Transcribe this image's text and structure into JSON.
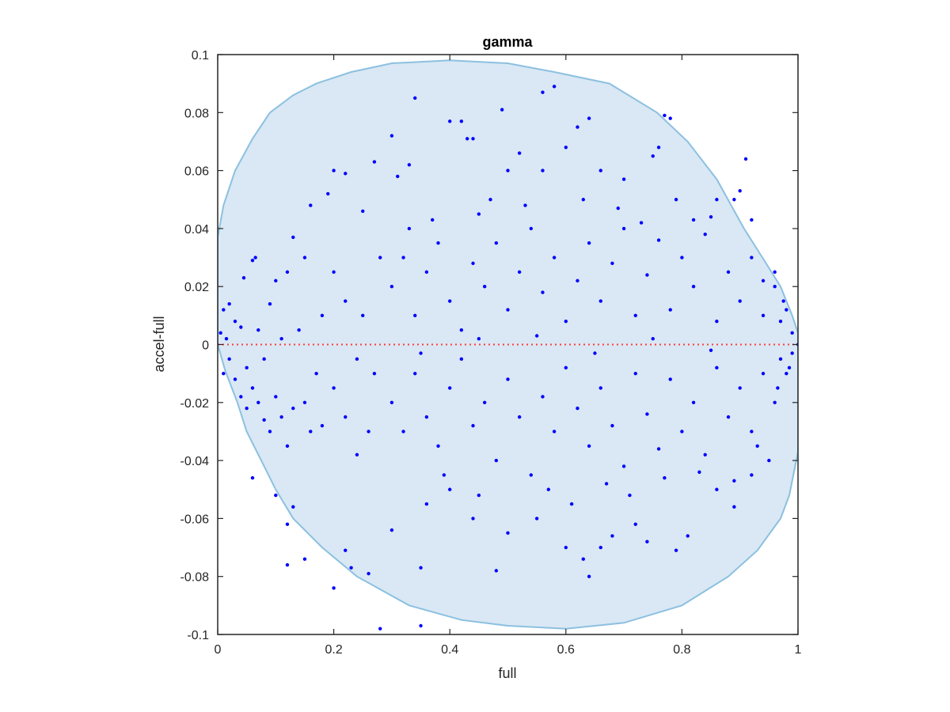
{
  "chart_data": {
    "type": "scatter",
    "title": "gamma",
    "xlabel": "full",
    "ylabel": "accel-full",
    "xlim": [
      0,
      1
    ],
    "ylim": [
      -0.1,
      0.1
    ],
    "xticks": [
      0,
      0.2,
      0.4,
      0.6,
      0.8,
      1
    ],
    "xtick_labels": [
      "0",
      "0.2",
      "0.4",
      "0.6",
      "0.8",
      "1"
    ],
    "yticks": [
      -0.1,
      -0.08,
      -0.06,
      -0.04,
      -0.02,
      0,
      0.02,
      0.04,
      0.06,
      0.08,
      0.1
    ],
    "ytick_labels": [
      "-0.1",
      "-0.08",
      "-0.06",
      "-0.04",
      "-0.02",
      "0",
      "0.02",
      "0.04",
      "0.06",
      "0.08",
      "0.1"
    ],
    "grid": false,
    "colors": {
      "points": "#0000ff",
      "region_fill": "#d9e8f4",
      "region_edge": "#8cc0e0",
      "reference_line": "#ff3b3b",
      "axes": "#262626"
    },
    "reference_line": {
      "y": 0,
      "style": "dotted"
    },
    "region": [
      [
        0,
        0.037
      ],
      [
        0.01,
        0.048
      ],
      [
        0.03,
        0.06
      ],
      [
        0.06,
        0.071
      ],
      [
        0.09,
        0.08
      ],
      [
        0.13,
        0.086
      ],
      [
        0.17,
        0.09
      ],
      [
        0.23,
        0.094
      ],
      [
        0.3,
        0.097
      ],
      [
        0.4,
        0.098
      ],
      [
        0.5,
        0.097
      ],
      [
        0.58,
        0.094
      ],
      [
        0.675,
        0.09
      ],
      [
        0.757,
        0.08
      ],
      [
        0.81,
        0.07
      ],
      [
        0.86,
        0.057
      ],
      [
        0.907,
        0.04
      ],
      [
        0.945,
        0.028
      ],
      [
        0.97,
        0.02
      ],
      [
        0.99,
        0.01
      ],
      [
        1,
        0.004
      ],
      [
        1,
        -0.037
      ],
      [
        0.985,
        -0.052
      ],
      [
        0.97,
        -0.06
      ],
      [
        0.93,
        -0.071
      ],
      [
        0.88,
        -0.08
      ],
      [
        0.8,
        -0.09
      ],
      [
        0.7,
        -0.096
      ],
      [
        0.6,
        -0.098
      ],
      [
        0.5,
        -0.097
      ],
      [
        0.42,
        -0.095
      ],
      [
        0.33,
        -0.09
      ],
      [
        0.24,
        -0.08
      ],
      [
        0.18,
        -0.07
      ],
      [
        0.13,
        -0.06
      ],
      [
        0.1,
        -0.05
      ],
      [
        0.075,
        -0.04
      ],
      [
        0.05,
        -0.03
      ],
      [
        0.034,
        -0.02
      ],
      [
        0.013,
        -0.009
      ],
      [
        0,
        0
      ]
    ],
    "points": [
      [
        0.34,
        0.085
      ],
      [
        0.56,
        0.087
      ],
      [
        0.58,
        0.089
      ],
      [
        0.49,
        0.081
      ],
      [
        0.77,
        0.079
      ],
      [
        0.78,
        0.078
      ],
      [
        0.3,
        0.072
      ],
      [
        0.4,
        0.077
      ],
      [
        0.42,
        0.077
      ],
      [
        0.43,
        0.071
      ],
      [
        0.44,
        0.071
      ],
      [
        0.64,
        0.078
      ],
      [
        0.62,
        0.075
      ],
      [
        0.91,
        0.064
      ],
      [
        0.2,
        0.06
      ],
      [
        0.22,
        0.059
      ],
      [
        0.27,
        0.063
      ],
      [
        0.31,
        0.058
      ],
      [
        0.33,
        0.062
      ],
      [
        0.19,
        0.052
      ],
      [
        0.16,
        0.048
      ],
      [
        0.25,
        0.046
      ],
      [
        0.37,
        0.043
      ],
      [
        0.45,
        0.045
      ],
      [
        0.5,
        0.06
      ],
      [
        0.52,
        0.066
      ],
      [
        0.56,
        0.06
      ],
      [
        0.6,
        0.068
      ],
      [
        0.66,
        0.06
      ],
      [
        0.7,
        0.057
      ],
      [
        0.75,
        0.065
      ],
      [
        0.76,
        0.068
      ],
      [
        0.82,
        0.043
      ],
      [
        0.86,
        0.05
      ],
      [
        0.9,
        0.053
      ],
      [
        0.89,
        0.05
      ],
      [
        0.92,
        0.043
      ],
      [
        0.06,
        0.029
      ],
      [
        0.065,
        0.03
      ],
      [
        0.045,
        0.023
      ],
      [
        0.13,
        0.037
      ],
      [
        0.15,
        0.03
      ],
      [
        0.12,
        0.025
      ],
      [
        0.1,
        0.022
      ],
      [
        0.09,
        0.014
      ],
      [
        0.02,
        0.014
      ],
      [
        0.01,
        0.012
      ],
      [
        0.03,
        0.008
      ],
      [
        0.005,
        0.004
      ],
      [
        0.015,
        0.002
      ],
      [
        0.02,
        -0.005
      ],
      [
        0.01,
        -0.01
      ],
      [
        0.03,
        -0.012
      ],
      [
        0.04,
        -0.018
      ],
      [
        0.05,
        -0.022
      ],
      [
        0.06,
        -0.015
      ],
      [
        0.07,
        -0.02
      ],
      [
        0.08,
        -0.026
      ],
      [
        0.09,
        -0.03
      ],
      [
        0.1,
        -0.018
      ],
      [
        0.11,
        -0.025
      ],
      [
        0.12,
        -0.035
      ],
      [
        0.13,
        -0.022
      ],
      [
        0.15,
        -0.02
      ],
      [
        0.16,
        -0.03
      ],
      [
        0.18,
        -0.028
      ],
      [
        0.2,
        -0.015
      ],
      [
        0.22,
        -0.025
      ],
      [
        0.24,
        -0.038
      ],
      [
        0.26,
        -0.03
      ],
      [
        0.06,
        -0.046
      ],
      [
        0.1,
        -0.052
      ],
      [
        0.12,
        -0.062
      ],
      [
        0.13,
        -0.056
      ],
      [
        0.15,
        -0.074
      ],
      [
        0.12,
        -0.076
      ],
      [
        0.2,
        -0.084
      ],
      [
        0.22,
        -0.071
      ],
      [
        0.23,
        -0.077
      ],
      [
        0.28,
        -0.098
      ],
      [
        0.35,
        -0.097
      ],
      [
        0.35,
        -0.077
      ],
      [
        0.26,
        -0.079
      ],
      [
        0.3,
        -0.064
      ],
      [
        0.36,
        -0.055
      ],
      [
        0.4,
        -0.05
      ],
      [
        0.44,
        -0.06
      ],
      [
        0.48,
        -0.078
      ],
      [
        0.5,
        -0.065
      ],
      [
        0.55,
        -0.06
      ],
      [
        0.6,
        -0.07
      ],
      [
        0.63,
        -0.074
      ],
      [
        0.64,
        -0.08
      ],
      [
        0.66,
        -0.07
      ],
      [
        0.68,
        -0.066
      ],
      [
        0.72,
        -0.062
      ],
      [
        0.74,
        -0.068
      ],
      [
        0.77,
        -0.046
      ],
      [
        0.81,
        -0.066
      ],
      [
        0.86,
        -0.05
      ],
      [
        0.89,
        -0.047
      ],
      [
        0.92,
        -0.045
      ],
      [
        0.89,
        -0.056
      ],
      [
        0.79,
        -0.071
      ],
      [
        0.3,
        0.02
      ],
      [
        0.32,
        0.03
      ],
      [
        0.34,
        0.01
      ],
      [
        0.36,
        0.025
      ],
      [
        0.38,
        0.035
      ],
      [
        0.4,
        0.015
      ],
      [
        0.42,
        0.005
      ],
      [
        0.44,
        0.028
      ],
      [
        0.46,
        0.02
      ],
      [
        0.48,
        0.035
      ],
      [
        0.5,
        0.012
      ],
      [
        0.52,
        0.025
      ],
      [
        0.54,
        0.04
      ],
      [
        0.56,
        0.018
      ],
      [
        0.58,
        0.03
      ],
      [
        0.6,
        0.008
      ],
      [
        0.62,
        0.022
      ],
      [
        0.64,
        0.035
      ],
      [
        0.66,
        0.015
      ],
      [
        0.68,
        0.028
      ],
      [
        0.7,
        0.04
      ],
      [
        0.72,
        0.01
      ],
      [
        0.74,
        0.024
      ],
      [
        0.76,
        0.036
      ],
      [
        0.78,
        0.012
      ],
      [
        0.8,
        0.03
      ],
      [
        0.82,
        0.02
      ],
      [
        0.84,
        0.038
      ],
      [
        0.86,
        0.008
      ],
      [
        0.88,
        0.025
      ],
      [
        0.9,
        0.015
      ],
      [
        0.92,
        0.03
      ],
      [
        0.94,
        0.01
      ],
      [
        0.96,
        0.02
      ],
      [
        0.97,
        0.008
      ],
      [
        0.98,
        0.012
      ],
      [
        0.99,
        0.004
      ],
      [
        0.3,
        -0.02
      ],
      [
        0.32,
        -0.03
      ],
      [
        0.34,
        -0.01
      ],
      [
        0.36,
        -0.025
      ],
      [
        0.38,
        -0.035
      ],
      [
        0.4,
        -0.015
      ],
      [
        0.42,
        -0.005
      ],
      [
        0.44,
        -0.028
      ],
      [
        0.46,
        -0.02
      ],
      [
        0.48,
        -0.04
      ],
      [
        0.5,
        -0.012
      ],
      [
        0.52,
        -0.025
      ],
      [
        0.54,
        -0.045
      ],
      [
        0.56,
        -0.018
      ],
      [
        0.58,
        -0.03
      ],
      [
        0.6,
        -0.008
      ],
      [
        0.62,
        -0.022
      ],
      [
        0.64,
        -0.035
      ],
      [
        0.66,
        -0.015
      ],
      [
        0.68,
        -0.028
      ],
      [
        0.7,
        -0.042
      ],
      [
        0.72,
        -0.01
      ],
      [
        0.74,
        -0.024
      ],
      [
        0.76,
        -0.036
      ],
      [
        0.78,
        -0.012
      ],
      [
        0.8,
        -0.03
      ],
      [
        0.82,
        -0.02
      ],
      [
        0.84,
        -0.038
      ],
      [
        0.86,
        -0.008
      ],
      [
        0.88,
        -0.025
      ],
      [
        0.9,
        -0.015
      ],
      [
        0.92,
        -0.03
      ],
      [
        0.94,
        -0.01
      ],
      [
        0.96,
        -0.02
      ],
      [
        0.97,
        -0.005
      ],
      [
        0.98,
        -0.01
      ],
      [
        0.99,
        -0.003
      ],
      [
        1,
        0
      ],
      [
        0.25,
        0.01
      ],
      [
        0.27,
        -0.01
      ],
      [
        0.28,
        0.03
      ],
      [
        0.22,
        0.015
      ],
      [
        0.18,
        0.01
      ],
      [
        0.2,
        0.025
      ],
      [
        0.24,
        -0.005
      ],
      [
        0.17,
        -0.01
      ],
      [
        0.14,
        0.005
      ],
      [
        0.11,
        0.002
      ],
      [
        0.08,
        -0.005
      ],
      [
        0.07,
        0.005
      ],
      [
        0.05,
        -0.008
      ],
      [
        0.04,
        0.006
      ],
      [
        0.33,
        0.04
      ],
      [
        0.47,
        0.05
      ],
      [
        0.53,
        0.048
      ],
      [
        0.63,
        0.05
      ],
      [
        0.69,
        0.047
      ],
      [
        0.73,
        0.042
      ],
      [
        0.79,
        0.05
      ],
      [
        0.85,
        0.044
      ],
      [
        0.39,
        -0.045
      ],
      [
        0.45,
        -0.052
      ],
      [
        0.57,
        -0.05
      ],
      [
        0.61,
        -0.055
      ],
      [
        0.67,
        -0.048
      ],
      [
        0.71,
        -0.052
      ],
      [
        0.83,
        -0.044
      ],
      [
        0.93,
        -0.035
      ],
      [
        0.95,
        -0.04
      ],
      [
        0.96,
        0.025
      ],
      [
        0.94,
        0.022
      ],
      [
        0.975,
        0.015
      ],
      [
        0.985,
        -0.008
      ],
      [
        0.965,
        -0.015
      ],
      [
        0.55,
        0.003
      ],
      [
        0.65,
        -0.003
      ],
      [
        0.75,
        0.002
      ],
      [
        0.85,
        -0.002
      ],
      [
        0.45,
        0.002
      ],
      [
        0.35,
        -0.003
      ]
    ]
  }
}
